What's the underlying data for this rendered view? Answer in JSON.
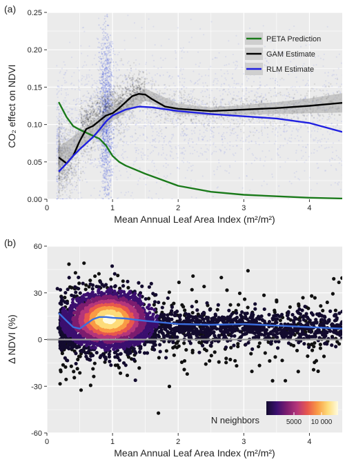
{
  "chart_data": [
    {
      "panel": "(a)",
      "type": "scatter",
      "xlabel": "Mean Annual Leaf Area Index (m²/m²)",
      "ylabel": "CO₂ effect on NDVI",
      "xlim": [
        0,
        4.5
      ],
      "ylim": [
        0,
        0.25
      ],
      "xticks": [
        0,
        1,
        2,
        3,
        4
      ],
      "yticks": [
        0.0,
        0.05,
        0.1,
        0.15,
        0.2,
        0.25
      ],
      "xtick_labels": [
        "0",
        "1",
        "2",
        "3",
        "4"
      ],
      "ytick_labels": [
        "0.00",
        "0.05",
        "0.10",
        "0.15",
        "0.20",
        "0.25"
      ],
      "background": "#ebebeb",
      "grid": true,
      "legend_position": "top-right",
      "series": [
        {
          "name": "PETA Prediction",
          "color": "#1a7a1a",
          "x": [
            0.18,
            0.3,
            0.4,
            0.5,
            0.6,
            0.7,
            0.8,
            0.9,
            1.0,
            1.1,
            1.2,
            1.5,
            2.0,
            2.5,
            3.0,
            3.5,
            4.0,
            4.5
          ],
          "y": [
            0.13,
            0.11,
            0.098,
            0.093,
            0.089,
            0.085,
            0.081,
            0.072,
            0.058,
            0.05,
            0.045,
            0.034,
            0.018,
            0.01,
            0.006,
            0.004,
            0.002,
            0.001
          ]
        },
        {
          "name": "GAM Estimate",
          "color": "#000000",
          "x": [
            0.18,
            0.3,
            0.4,
            0.5,
            0.6,
            0.7,
            0.8,
            0.9,
            1.0,
            1.1,
            1.2,
            1.3,
            1.4,
            1.5,
            1.6,
            1.8,
            2.0,
            2.5,
            3.0,
            3.5,
            4.0,
            4.5
          ],
          "y": [
            0.056,
            0.048,
            0.058,
            0.078,
            0.094,
            0.098,
            0.105,
            0.112,
            0.115,
            0.122,
            0.13,
            0.138,
            0.141,
            0.14,
            0.134,
            0.124,
            0.121,
            0.118,
            0.12,
            0.122,
            0.125,
            0.129
          ]
        },
        {
          "name": "RLM Estimate",
          "color": "#1f1fe0",
          "x": [
            0.18,
            0.3,
            0.4,
            0.5,
            0.6,
            0.7,
            0.8,
            0.9,
            1.0,
            1.2,
            1.4,
            1.6,
            2.0,
            2.5,
            3.0,
            3.5,
            4.0,
            4.5
          ],
          "y": [
            0.037,
            0.048,
            0.058,
            0.067,
            0.075,
            0.083,
            0.093,
            0.104,
            0.112,
            0.12,
            0.124,
            0.123,
            0.118,
            0.114,
            0.111,
            0.108,
            0.102,
            0.09
          ]
        }
      ],
      "confidence_band": {
        "series": "GAM Estimate",
        "x": [
          0.18,
          0.5,
          1.0,
          1.5,
          2.0,
          2.5,
          3.0,
          3.5,
          4.0,
          4.5
        ],
        "upper": [
          0.07,
          0.09,
          0.125,
          0.148,
          0.128,
          0.123,
          0.126,
          0.13,
          0.135,
          0.142
        ],
        "lower": [
          0.04,
          0.066,
          0.105,
          0.132,
          0.114,
          0.112,
          0.113,
          0.114,
          0.115,
          0.116
        ]
      }
    },
    {
      "panel": "(b)",
      "type": "scatter",
      "xlabel": "Mean Annual Leaf Area Index (m²/m²)",
      "ylabel": "Δ NDVI (%)",
      "xlim": [
        0,
        4.5
      ],
      "ylim": [
        -60,
        60
      ],
      "xticks": [
        0,
        1,
        2,
        3,
        4
      ],
      "yticks": [
        -60,
        -30,
        0,
        30,
        60
      ],
      "xtick_labels": [
        "0",
        "1",
        "2",
        "3",
        "4"
      ],
      "ytick_labels": [
        "-60",
        "-30",
        "0",
        "30",
        "60"
      ],
      "background": "#ebebeb",
      "grid": true,
      "zero_line_color": "#999999",
      "smooth_series": {
        "color": "#3b6fe0",
        "x": [
          0.18,
          0.3,
          0.4,
          0.5,
          0.6,
          0.7,
          0.8,
          0.9,
          1.0,
          1.2,
          1.5,
          2.0,
          2.5,
          3.0,
          3.5,
          4.0,
          4.5
        ],
        "y": [
          17,
          12,
          8,
          7,
          10,
          13,
          14.5,
          14.5,
          14,
          13.5,
          12,
          10,
          9.5,
          10,
          9,
          8,
          7
        ]
      },
      "colorbar": {
        "label": "N neighbors",
        "ticks": [
          5000,
          10000
        ],
        "tick_labels": [
          "5000",
          "10 000"
        ],
        "position": "bottom-right",
        "colors": [
          "#130b2e",
          "#3b0f6f",
          "#7c1d6f",
          "#b5367a",
          "#e8584d",
          "#f99b45",
          "#fddc7a",
          "#fffbe0"
        ]
      }
    }
  ],
  "panels": {
    "a": {
      "tag": "(a)"
    },
    "b": {
      "tag": "(b)"
    }
  }
}
